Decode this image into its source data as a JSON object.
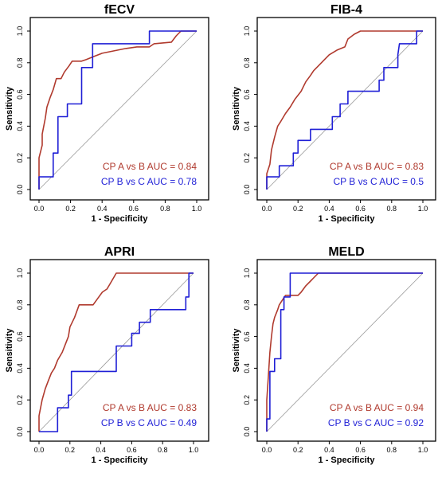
{
  "colors": {
    "cp_a_vs_b": "#B03A2E",
    "cp_b_vs_c": "#1F1FD6",
    "reference_line": "#9A9A9A"
  },
  "chart_data": [
    {
      "type": "line",
      "title": "fECV",
      "xlabel": "1 - Specificity",
      "ylabel": "Sensitivity",
      "xlim": [
        0,
        1
      ],
      "ylim": [
        0,
        1
      ],
      "x_ticks": [
        "0.0",
        "0.2",
        "0.4",
        "0.6",
        "0.8",
        "1.0"
      ],
      "y_ticks": [
        "0.0",
        "0.2",
        "0.4",
        "0.6",
        "0.8",
        "1.0"
      ],
      "grid": false,
      "series": [
        {
          "name": "CP A vs B AUC = 0.84",
          "color": "#B03A2E",
          "points": [
            [
              0,
              0
            ],
            [
              0,
              0.08
            ],
            [
              0,
              0.2
            ],
            [
              0.02,
              0.28
            ],
            [
              0.02,
              0.35
            ],
            [
              0.04,
              0.45
            ],
            [
              0.05,
              0.52
            ],
            [
              0.07,
              0.58
            ],
            [
              0.09,
              0.63
            ],
            [
              0.11,
              0.7
            ],
            [
              0.14,
              0.7
            ],
            [
              0.16,
              0.74
            ],
            [
              0.19,
              0.78
            ],
            [
              0.21,
              0.81
            ],
            [
              0.27,
              0.81
            ],
            [
              0.3,
              0.82
            ],
            [
              0.35,
              0.84
            ],
            [
              0.4,
              0.86
            ],
            [
              0.5,
              0.88
            ],
            [
              0.55,
              0.89
            ],
            [
              0.62,
              0.9
            ],
            [
              0.7,
              0.9
            ],
            [
              0.73,
              0.92
            ],
            [
              0.84,
              0.93
            ],
            [
              0.87,
              0.97
            ],
            [
              0.9,
              1
            ],
            [
              1,
              1
            ]
          ]
        },
        {
          "name": "CP B vs C AUC = 0.78",
          "color": "#1F1FD6",
          "points": [
            [
              0,
              0
            ],
            [
              0,
              0.08
            ],
            [
              0.09,
              0.08
            ],
            [
              0.09,
              0.23
            ],
            [
              0.12,
              0.23
            ],
            [
              0.12,
              0.46
            ],
            [
              0.18,
              0.46
            ],
            [
              0.18,
              0.54
            ],
            [
              0.27,
              0.54
            ],
            [
              0.27,
              0.77
            ],
            [
              0.34,
              0.77
            ],
            [
              0.34,
              0.92
            ],
            [
              0.7,
              0.92
            ],
            [
              0.7,
              1
            ],
            [
              1,
              1
            ]
          ]
        }
      ],
      "reference_line": [
        [
          0,
          0
        ],
        [
          1,
          1
        ]
      ],
      "legend_position": "bottom-right"
    },
    {
      "type": "line",
      "title": "FIB-4",
      "xlabel": "1 - Specificity",
      "ylabel": "Sensitivity",
      "xlim": [
        0,
        1
      ],
      "ylim": [
        0,
        1
      ],
      "x_ticks": [
        "0.0",
        "0.2",
        "0.4",
        "0.6",
        "0.8",
        "1.0"
      ],
      "y_ticks": [
        "0.0",
        "0.2",
        "0.4",
        "0.6",
        "0.8",
        "1.0"
      ],
      "grid": false,
      "series": [
        {
          "name": "CP A vs B AUC = 0.83",
          "color": "#B03A2E",
          "points": [
            [
              0,
              0
            ],
            [
              0,
              0.1
            ],
            [
              0.02,
              0.16
            ],
            [
              0.03,
              0.25
            ],
            [
              0.05,
              0.33
            ],
            [
              0.07,
              0.4
            ],
            [
              0.09,
              0.43
            ],
            [
              0.12,
              0.48
            ],
            [
              0.15,
              0.52
            ],
            [
              0.18,
              0.57
            ],
            [
              0.22,
              0.62
            ],
            [
              0.25,
              0.68
            ],
            [
              0.28,
              0.72
            ],
            [
              0.3,
              0.75
            ],
            [
              0.33,
              0.78
            ],
            [
              0.37,
              0.82
            ],
            [
              0.4,
              0.85
            ],
            [
              0.45,
              0.88
            ],
            [
              0.5,
              0.9
            ],
            [
              0.52,
              0.95
            ],
            [
              0.56,
              0.98
            ],
            [
              0.6,
              1
            ],
            [
              1,
              1
            ]
          ]
        },
        {
          "name": "CP B vs C AUC = 0.5",
          "color": "#1F1FD6",
          "points": [
            [
              0,
              0
            ],
            [
              0,
              0.08
            ],
            [
              0.08,
              0.08
            ],
            [
              0.08,
              0.15
            ],
            [
              0.17,
              0.15
            ],
            [
              0.17,
              0.23
            ],
            [
              0.2,
              0.23
            ],
            [
              0.2,
              0.31
            ],
            [
              0.28,
              0.31
            ],
            [
              0.28,
              0.38
            ],
            [
              0.42,
              0.38
            ],
            [
              0.42,
              0.46
            ],
            [
              0.47,
              0.46
            ],
            [
              0.47,
              0.54
            ],
            [
              0.52,
              0.54
            ],
            [
              0.52,
              0.62
            ],
            [
              0.72,
              0.62
            ],
            [
              0.72,
              0.69
            ],
            [
              0.75,
              0.69
            ],
            [
              0.75,
              0.77
            ],
            [
              0.84,
              0.77
            ],
            [
              0.84,
              0.85
            ],
            [
              0.85,
              0.92
            ],
            [
              0.96,
              0.92
            ],
            [
              0.96,
              1
            ],
            [
              1,
              1
            ]
          ]
        }
      ],
      "reference_line": [
        [
          0,
          0
        ],
        [
          1,
          1
        ]
      ],
      "legend_position": "bottom-right"
    },
    {
      "type": "line",
      "title": "APRI",
      "xlabel": "1 - Specificity",
      "ylabel": "Sensitivity",
      "xlim": [
        0,
        1
      ],
      "ylim": [
        0,
        1
      ],
      "x_ticks": [
        "0.0",
        "0.2",
        "0.4",
        "0.6",
        "0.8",
        "1.0"
      ],
      "y_ticks": [
        "0.0",
        "0.2",
        "0.4",
        "0.6",
        "0.8",
        "1.0"
      ],
      "grid": false,
      "series": [
        {
          "name": "CP A vs B AUC = 0.83",
          "color": "#B03A2E",
          "points": [
            [
              0,
              0
            ],
            [
              0,
              0.1
            ],
            [
              0.02,
              0.2
            ],
            [
              0.04,
              0.27
            ],
            [
              0.06,
              0.32
            ],
            [
              0.08,
              0.37
            ],
            [
              0.1,
              0.4
            ],
            [
              0.12,
              0.45
            ],
            [
              0.15,
              0.5
            ],
            [
              0.17,
              0.55
            ],
            [
              0.19,
              0.6
            ],
            [
              0.2,
              0.66
            ],
            [
              0.23,
              0.72
            ],
            [
              0.26,
              0.8
            ],
            [
              0.35,
              0.8
            ],
            [
              0.38,
              0.84
            ],
            [
              0.41,
              0.88
            ],
            [
              0.44,
              0.9
            ],
            [
              0.47,
              0.95
            ],
            [
              0.5,
              1
            ],
            [
              1,
              1
            ]
          ]
        },
        {
          "name": "CP B vs C AUC = 0.49",
          "color": "#1F1FD6",
          "points": [
            [
              0,
              0
            ],
            [
              0.12,
              0
            ],
            [
              0.12,
              0.15
            ],
            [
              0.19,
              0.15
            ],
            [
              0.19,
              0.23
            ],
            [
              0.21,
              0.23
            ],
            [
              0.21,
              0.38
            ],
            [
              0.5,
              0.38
            ],
            [
              0.5,
              0.54
            ],
            [
              0.6,
              0.54
            ],
            [
              0.6,
              0.62
            ],
            [
              0.65,
              0.62
            ],
            [
              0.65,
              0.69
            ],
            [
              0.72,
              0.69
            ],
            [
              0.72,
              0.77
            ],
            [
              0.95,
              0.77
            ],
            [
              0.95,
              0.85
            ],
            [
              0.97,
              0.85
            ],
            [
              0.97,
              1
            ],
            [
              1,
              1
            ]
          ]
        }
      ],
      "reference_line": [
        [
          0,
          0
        ],
        [
          1,
          1
        ]
      ],
      "legend_position": "bottom-right"
    },
    {
      "type": "line",
      "title": "MELD",
      "xlabel": "1 - Specificity",
      "ylabel": "Sensitivity",
      "xlim": [
        0,
        1
      ],
      "ylim": [
        0,
        1
      ],
      "x_ticks": [
        "0.0",
        "0.2",
        "0.4",
        "0.6",
        "0.8",
        "1.0"
      ],
      "y_ticks": [
        "0.0",
        "0.2",
        "0.4",
        "0.6",
        "0.8",
        "1.0"
      ],
      "grid": false,
      "series": [
        {
          "name": "CP A vs B AUC = 0.94",
          "color": "#B03A2E",
          "points": [
            [
              0,
              0
            ],
            [
              0,
              0.2
            ],
            [
              0.01,
              0.35
            ],
            [
              0.02,
              0.5
            ],
            [
              0.03,
              0.6
            ],
            [
              0.04,
              0.68
            ],
            [
              0.05,
              0.72
            ],
            [
              0.07,
              0.77
            ],
            [
              0.08,
              0.8
            ],
            [
              0.1,
              0.83
            ],
            [
              0.12,
              0.86
            ],
            [
              0.2,
              0.86
            ],
            [
              0.22,
              0.88
            ],
            [
              0.25,
              0.92
            ],
            [
              0.28,
              0.95
            ],
            [
              0.3,
              0.97
            ],
            [
              0.33,
              1
            ],
            [
              1,
              1
            ]
          ]
        },
        {
          "name": "CP B vs C AUC = 0.92",
          "color": "#1F1FD6",
          "points": [
            [
              0,
              0
            ],
            [
              0,
              0.08
            ],
            [
              0.02,
              0.08
            ],
            [
              0.02,
              0.38
            ],
            [
              0.05,
              0.38
            ],
            [
              0.05,
              0.46
            ],
            [
              0.09,
              0.46
            ],
            [
              0.09,
              0.77
            ],
            [
              0.11,
              0.77
            ],
            [
              0.11,
              0.85
            ],
            [
              0.15,
              0.85
            ],
            [
              0.15,
              1
            ],
            [
              1,
              1
            ]
          ]
        }
      ],
      "reference_line": [
        [
          0,
          0
        ],
        [
          1,
          1
        ]
      ],
      "legend_position": "bottom-right"
    }
  ]
}
